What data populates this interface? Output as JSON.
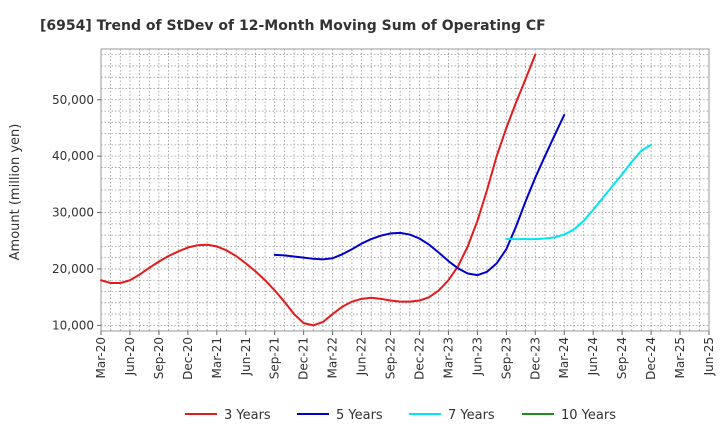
{
  "chart_data": {
    "type": "line",
    "title": "[6954]  Trend of StDev of 12-Month Moving Sum of Operating CF",
    "ylabel": "Amount (million yen)",
    "xlabel": "",
    "x_labels": [
      "Mar-20",
      "Jun-20",
      "Sep-20",
      "Dec-20",
      "Mar-21",
      "Jun-21",
      "Sep-21",
      "Dec-21",
      "Mar-22",
      "Jun-22",
      "Sep-22",
      "Dec-22",
      "Mar-23",
      "Jun-23",
      "Sep-23",
      "Dec-23",
      "Mar-24",
      "Jun-24",
      "Sep-24",
      "Dec-24",
      "Mar-25",
      "Jun-25"
    ],
    "y_ticks": [
      10000,
      20000,
      30000,
      40000,
      50000
    ],
    "y_tick_labels": [
      "10,000",
      "20,000",
      "30,000",
      "40,000",
      "50,000"
    ],
    "ylim": [
      9000,
      59000
    ],
    "grid": true,
    "legend_position": "bottom",
    "series": [
      {
        "name": "3 Years",
        "color": "#e31a1c",
        "start": "Mar-20",
        "values": [
          18000,
          17500,
          17500,
          18000,
          19000,
          20200,
          21300,
          22300,
          23100,
          23800,
          24200,
          24300,
          24000,
          23300,
          22300,
          21000,
          19600,
          18000,
          16200,
          14200,
          12000,
          10400,
          10000,
          10600,
          12000,
          13300,
          14200,
          14700,
          14900,
          14700,
          14400,
          14200,
          14200,
          14400,
          15000,
          16200,
          18000,
          20500,
          24000,
          28500,
          34000,
          40000,
          45000,
          49500,
          53700,
          58000
        ]
      },
      {
        "name": "5 Years",
        "color": "#0000cd",
        "start": "Sep-21",
        "values": [
          22500,
          22400,
          22200,
          22000,
          21800,
          21700,
          21900,
          22600,
          23500,
          24500,
          25300,
          25900,
          26300,
          26400,
          26100,
          25400,
          24300,
          22900,
          21400,
          20100,
          19200,
          18900,
          19500,
          21000,
          23500,
          27500,
          32000,
          36200,
          40000,
          43700,
          47300
        ]
      },
      {
        "name": "7 Years",
        "color": "#00e5ee",
        "start": "Sep-23",
        "values": [
          25300,
          25300,
          25300,
          25300,
          25400,
          25600,
          26100,
          27000,
          28500,
          30500,
          32600,
          34700,
          36800,
          39000,
          41000,
          42000
        ]
      },
      {
        "name": "10 Years",
        "color": "#228b22",
        "start": "Mar-25",
        "values": []
      }
    ]
  }
}
